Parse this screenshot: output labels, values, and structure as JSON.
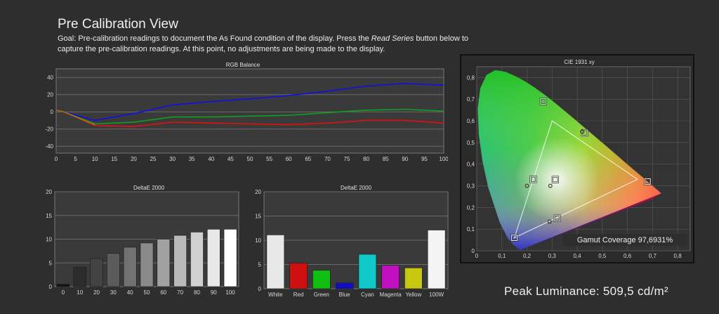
{
  "page": {
    "title": "Pre Calibration View",
    "goal_before": "Goal: Pre-calibration readings to document the As Found condition of the display. Press the ",
    "goal_emphasis": "Read Series",
    "goal_after": " button below to capture the pre-calibration readings. At this point, no adjustments are being made to the display.",
    "peak_luminance": "Peak Luminance: 509,5 cd/m²"
  },
  "chart_data": [
    {
      "id": "rgb",
      "type": "line",
      "title": "RGB Balance",
      "x": [
        0,
        2,
        10,
        20,
        30,
        40,
        50,
        60,
        70,
        80,
        90,
        100
      ],
      "xticks": [
        0,
        5,
        10,
        15,
        20,
        25,
        30,
        35,
        40,
        45,
        50,
        55,
        60,
        65,
        70,
        75,
        80,
        85,
        90,
        95,
        100
      ],
      "yticks": [
        40,
        20,
        0,
        -20,
        -40
      ],
      "xlim": [
        0,
        100
      ],
      "ylim": [
        -48,
        50
      ],
      "grid": true,
      "series": [
        {
          "color": "#1010e0",
          "values": [
            2,
            0,
            -10,
            -2,
            8,
            12,
            15,
            19,
            24,
            30,
            33,
            31
          ]
        },
        {
          "color": "#10a020",
          "values": [
            2,
            0,
            -14,
            -12,
            -6,
            -6,
            -5,
            -4,
            -1,
            2,
            3,
            1
          ]
        },
        {
          "color": "#e01010",
          "values": [
            2,
            0,
            -16,
            -17,
            -12,
            -13,
            -14,
            -15,
            -13,
            -10,
            -10,
            -13
          ]
        },
        {
          "color": "#a07020",
          "values": [
            2,
            0,
            -15,
            null,
            null,
            null,
            null,
            null,
            null,
            null,
            null,
            null
          ]
        }
      ]
    },
    {
      "id": "gray",
      "type": "bar",
      "title": "DeltaE 2000",
      "categories": [
        "0",
        "10",
        "20",
        "30",
        "40",
        "50",
        "60",
        "70",
        "80",
        "90",
        "100"
      ],
      "values": [
        0.5,
        4.1,
        5.9,
        7.0,
        8.3,
        9.2,
        10.0,
        10.8,
        11.5,
        12.1,
        12.1
      ],
      "yticks": [
        20,
        15,
        10,
        5,
        0
      ],
      "ylim": [
        0,
        20
      ]
    },
    {
      "id": "color",
      "type": "bar",
      "title": "DeltaE 2000",
      "categories": [
        "White",
        "Red",
        "Green",
        "Blue",
        "Cyan",
        "Magenta",
        "Yellow",
        "100W"
      ],
      "values": [
        11.1,
        5.3,
        3.8,
        1.2,
        7.1,
        4.8,
        4.3,
        12.1
      ],
      "colors": [
        "#e8e8e8",
        "#d01010",
        "#10c010",
        "#1010c0",
        "#10c8c8",
        "#c010c0",
        "#c8c810",
        "#f4f4f4"
      ],
      "yticks": [
        20,
        15,
        10,
        5,
        0
      ],
      "ylim": [
        0,
        20
      ]
    },
    {
      "id": "cie",
      "type": "scatter",
      "title": "CIE 1931 xy",
      "xticks": [
        "0",
        "0,1",
        "0,2",
        "0,3",
        "0,4",
        "0,5",
        "0,6",
        "0,7",
        "0,8"
      ],
      "yticks": [
        "0,8",
        "0,7",
        "0,6",
        "0,5",
        "0,4",
        "0,3",
        "0,2",
        "0,1",
        "0"
      ],
      "xlim": [
        0,
        0.85
      ],
      "ylim": [
        0,
        0.85
      ],
      "target_gamut": [
        [
          0.64,
          0.33
        ],
        [
          0.3,
          0.6
        ],
        [
          0.15,
          0.06
        ]
      ],
      "targets": [
        [
          0.68,
          0.32
        ],
        [
          0.265,
          0.69
        ],
        [
          0.15,
          0.06
        ],
        [
          0.225,
          0.33
        ],
        [
          0.43,
          0.545
        ],
        [
          0.321,
          0.15
        ],
        [
          0.3127,
          0.329
        ]
      ],
      "measured": [
        [
          0.2,
          0.3
        ],
        [
          0.42,
          0.55
        ],
        [
          0.29,
          0.135
        ],
        [
          0.293,
          0.3
        ]
      ],
      "annotation": "Gamut Coverage 97,6931%"
    }
  ]
}
